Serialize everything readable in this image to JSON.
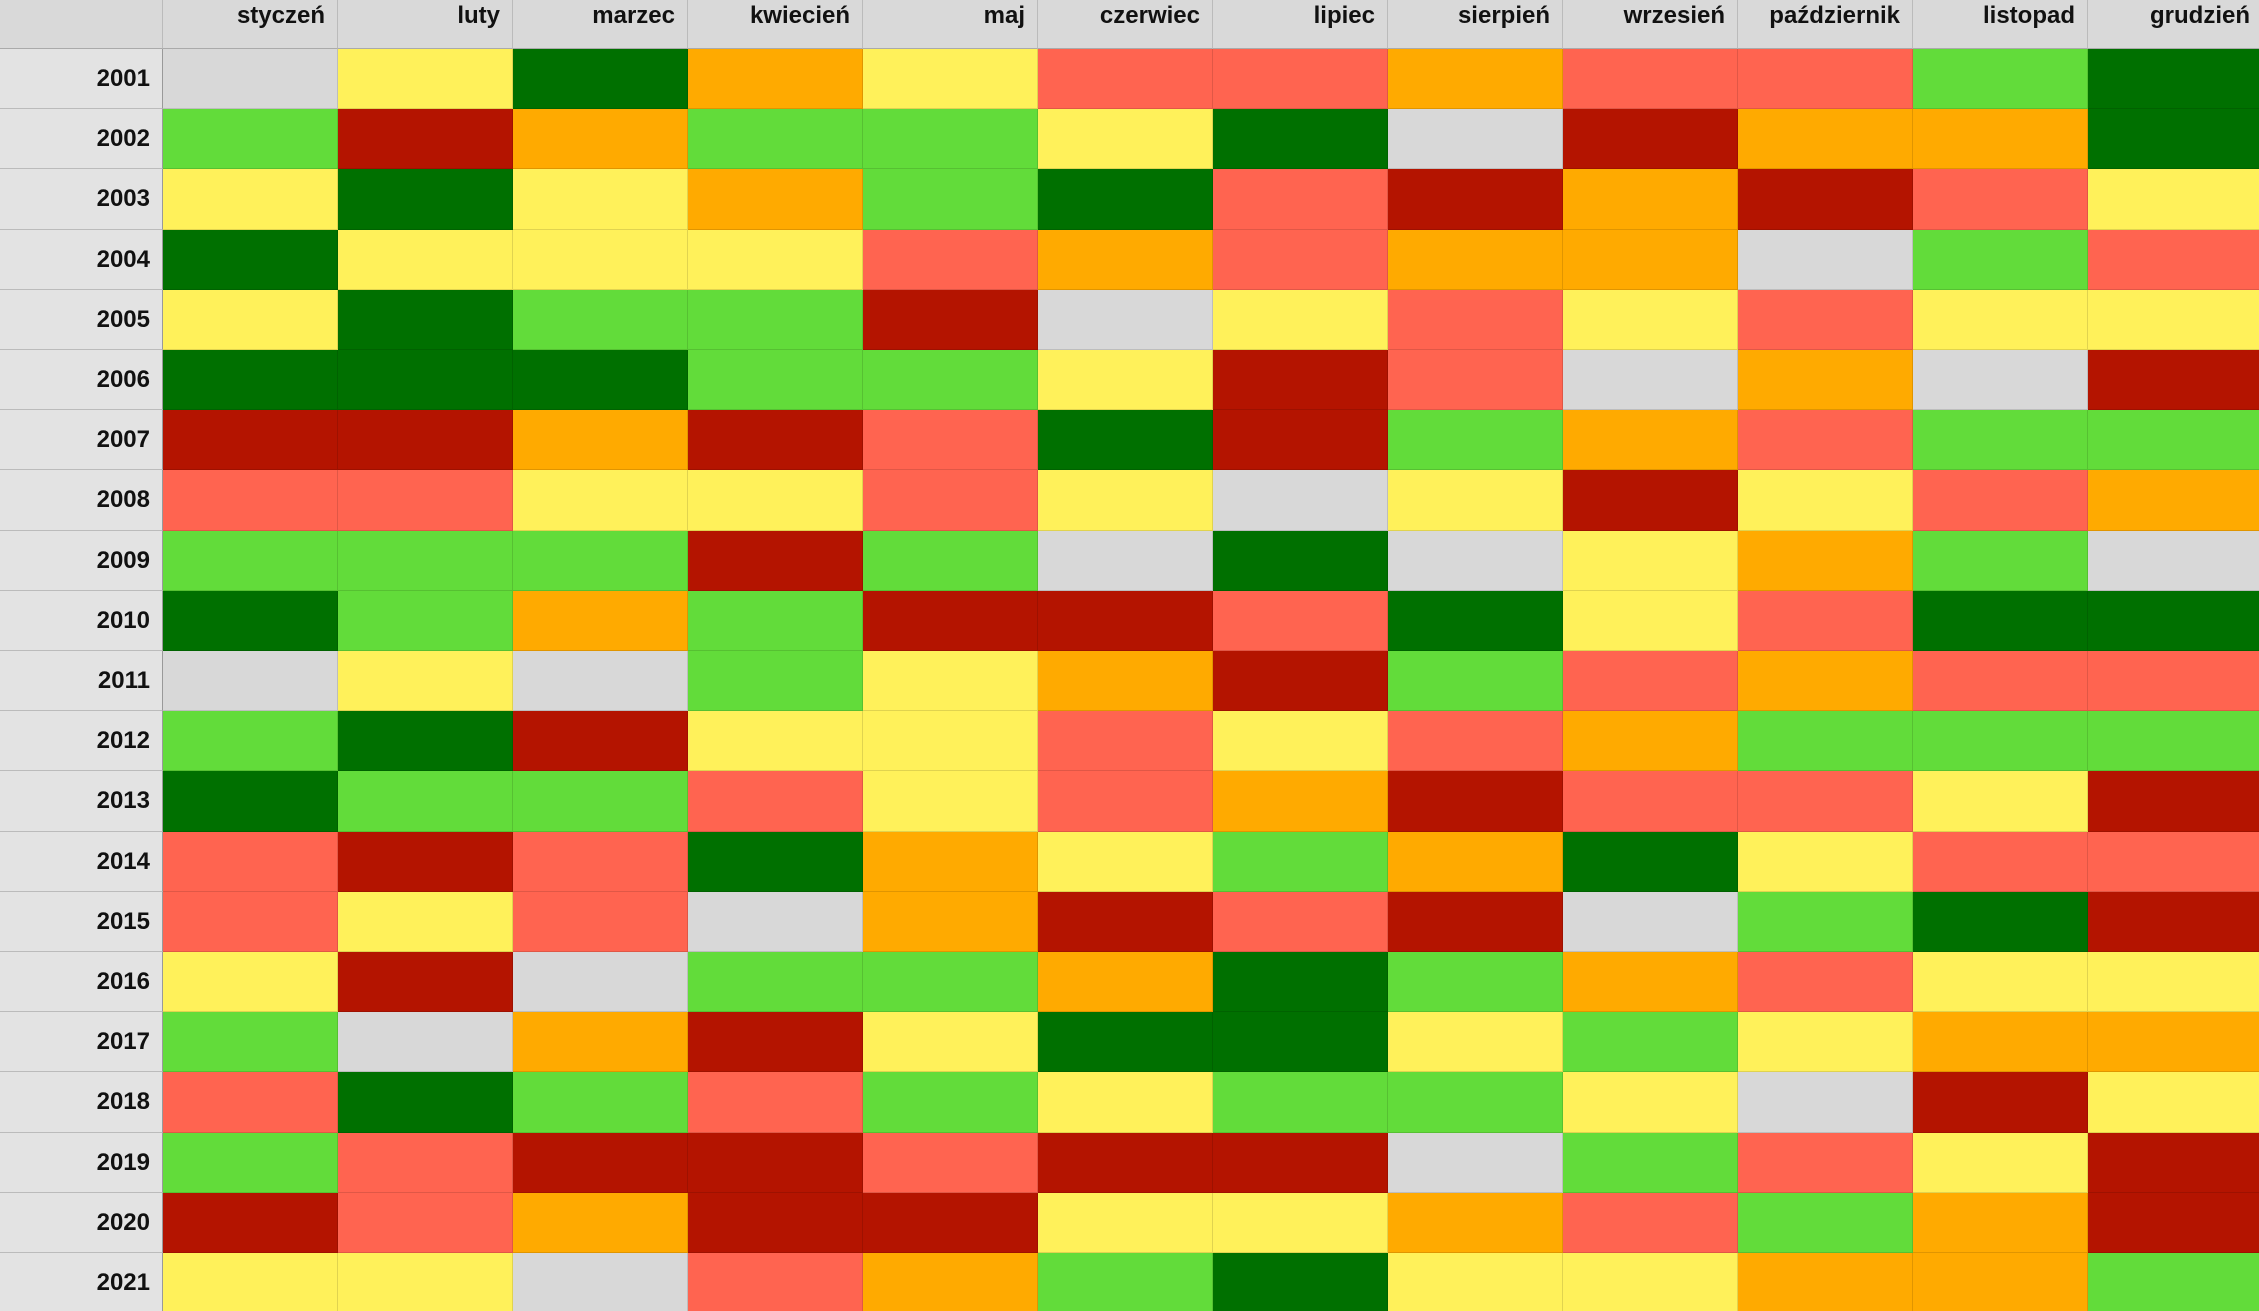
{
  "table": {
    "columns": [
      "styczeń",
      "luty",
      "marzec",
      "kwiecień",
      "maj",
      "czerwiec",
      "lipiec",
      "sierpień",
      "wrzesień",
      "październik",
      "listopad",
      "grudzień"
    ],
    "rows": [
      {
        "year": "2001",
        "colors": [
          "#d8d8d8",
          "#fff15a",
          "#007000",
          "#ffaa00",
          "#fff15a",
          "#ff6450",
          "#ff6450",
          "#ffaa00",
          "#ff6450",
          "#ff6450",
          "#62dc3a",
          "#007000"
        ]
      },
      {
        "year": "2002",
        "colors": [
          "#62dc3a",
          "#b41400",
          "#ffaa00",
          "#62dc3a",
          "#62dc3a",
          "#fff15a",
          "#007000",
          "#d8d8d8",
          "#b41400",
          "#ffaa00",
          "#ffaa00",
          "#007000"
        ]
      },
      {
        "year": "2003",
        "colors": [
          "#fff15a",
          "#007000",
          "#fff15a",
          "#ffaa00",
          "#62dc3a",
          "#007000",
          "#ff6450",
          "#b41400",
          "#ffaa00",
          "#b41400",
          "#ff6450",
          "#fff15a"
        ]
      },
      {
        "year": "2004",
        "colors": [
          "#007000",
          "#fff15a",
          "#fff15a",
          "#fff15a",
          "#ff6450",
          "#ffaa00",
          "#ff6450",
          "#ffaa00",
          "#ffaa00",
          "#d8d8d8",
          "#62dc3a",
          "#ff6450"
        ]
      },
      {
        "year": "2005",
        "colors": [
          "#fff15a",
          "#007000",
          "#62dc3a",
          "#62dc3a",
          "#b41400",
          "#d8d8d8",
          "#fff15a",
          "#ff6450",
          "#fff15a",
          "#ff6450",
          "#fff15a",
          "#fff15a"
        ]
      },
      {
        "year": "2006",
        "colors": [
          "#007000",
          "#007000",
          "#007000",
          "#62dc3a",
          "#62dc3a",
          "#fff15a",
          "#b41400",
          "#ff6450",
          "#d8d8d8",
          "#ffaa00",
          "#d8d8d8",
          "#b41400"
        ]
      },
      {
        "year": "2007",
        "colors": [
          "#b41400",
          "#b41400",
          "#ffaa00",
          "#b41400",
          "#ff6450",
          "#007000",
          "#b41400",
          "#62dc3a",
          "#ffaa00",
          "#ff6450",
          "#62dc3a",
          "#62dc3a"
        ]
      },
      {
        "year": "2008",
        "colors": [
          "#ff6450",
          "#ff6450",
          "#fff15a",
          "#fff15a",
          "#ff6450",
          "#fff15a",
          "#d8d8d8",
          "#fff15a",
          "#b41400",
          "#fff15a",
          "#ff6450",
          "#ffaa00"
        ]
      },
      {
        "year": "2009",
        "colors": [
          "#62dc3a",
          "#62dc3a",
          "#62dc3a",
          "#b41400",
          "#62dc3a",
          "#d8d8d8",
          "#007000",
          "#d8d8d8",
          "#fff15a",
          "#ffaa00",
          "#62dc3a",
          "#d8d8d8"
        ]
      },
      {
        "year": "2010",
        "colors": [
          "#007000",
          "#62dc3a",
          "#ffaa00",
          "#62dc3a",
          "#b41400",
          "#b41400",
          "#ff6450",
          "#007000",
          "#fff15a",
          "#ff6450",
          "#007000",
          "#007000"
        ]
      },
      {
        "year": "2011",
        "colors": [
          "#d8d8d8",
          "#fff15a",
          "#d8d8d8",
          "#62dc3a",
          "#fff15a",
          "#ffaa00",
          "#b41400",
          "#62dc3a",
          "#ff6450",
          "#ffaa00",
          "#ff6450",
          "#ff6450"
        ]
      },
      {
        "year": "2012",
        "colors": [
          "#62dc3a",
          "#007000",
          "#b41400",
          "#fff15a",
          "#fff15a",
          "#ff6450",
          "#fff15a",
          "#ff6450",
          "#ffaa00",
          "#62dc3a",
          "#62dc3a",
          "#62dc3a"
        ]
      },
      {
        "year": "2013",
        "colors": [
          "#007000",
          "#62dc3a",
          "#62dc3a",
          "#ff6450",
          "#fff15a",
          "#ff6450",
          "#ffaa00",
          "#b41400",
          "#ff6450",
          "#ff6450",
          "#fff15a",
          "#b41400"
        ]
      },
      {
        "year": "2014",
        "colors": [
          "#ff6450",
          "#b41400",
          "#ff6450",
          "#007000",
          "#ffaa00",
          "#fff15a",
          "#62dc3a",
          "#ffaa00",
          "#007000",
          "#fff15a",
          "#ff6450",
          "#ff6450"
        ]
      },
      {
        "year": "2015",
        "colors": [
          "#ff6450",
          "#fff15a",
          "#ff6450",
          "#d8d8d8",
          "#ffaa00",
          "#b41400",
          "#ff6450",
          "#b41400",
          "#d8d8d8",
          "#62dc3a",
          "#007000",
          "#b41400"
        ]
      },
      {
        "year": "2016",
        "colors": [
          "#fff15a",
          "#b41400",
          "#d8d8d8",
          "#62dc3a",
          "#62dc3a",
          "#ffaa00",
          "#007000",
          "#62dc3a",
          "#ffaa00",
          "#ff6450",
          "#fff15a",
          "#fff15a"
        ]
      },
      {
        "year": "2017",
        "colors": [
          "#62dc3a",
          "#d8d8d8",
          "#ffaa00",
          "#b41400",
          "#fff15a",
          "#007000",
          "#007000",
          "#fff15a",
          "#62dc3a",
          "#fff15a",
          "#ffaa00",
          "#ffaa00"
        ]
      },
      {
        "year": "2018",
        "colors": [
          "#ff6450",
          "#007000",
          "#62dc3a",
          "#ff6450",
          "#62dc3a",
          "#fff15a",
          "#62dc3a",
          "#62dc3a",
          "#fff15a",
          "#d8d8d8",
          "#b41400",
          "#fff15a"
        ]
      },
      {
        "year": "2019",
        "colors": [
          "#62dc3a",
          "#ff6450",
          "#b41400",
          "#b41400",
          "#ff6450",
          "#b41400",
          "#b41400",
          "#d8d8d8",
          "#62dc3a",
          "#ff6450",
          "#fff15a",
          "#b41400"
        ]
      },
      {
        "year": "2020",
        "colors": [
          "#b41400",
          "#ff6450",
          "#ffaa00",
          "#b41400",
          "#b41400",
          "#fff15a",
          "#fff15a",
          "#ffaa00",
          "#ff6450",
          "#62dc3a",
          "#ffaa00",
          "#b41400"
        ]
      },
      {
        "year": "2021",
        "colors": [
          "#fff15a",
          "#fff15a",
          "#d8d8d8",
          "#ff6450",
          "#ffaa00",
          "#62dc3a",
          "#007000",
          "#fff15a",
          "#fff15a",
          "#ffaa00",
          "#ffaa00",
          "#62dc3a"
        ]
      }
    ]
  }
}
